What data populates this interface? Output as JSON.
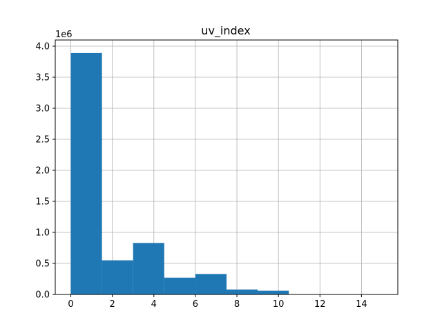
{
  "chart_data": {
    "type": "bar",
    "title": "uv_index",
    "xlabel": "",
    "ylabel": "",
    "y_offset_label": "1e6",
    "bar_color": "#1f77b4",
    "grid": true,
    "xlim": [
      -0.75,
      15.75
    ],
    "ylim": [
      0,
      4.1
    ],
    "bins": [
      {
        "start": 0.0,
        "end": 1.5,
        "value": 3.89
      },
      {
        "start": 1.5,
        "end": 3.0,
        "value": 0.55
      },
      {
        "start": 3.0,
        "end": 4.5,
        "value": 0.83
      },
      {
        "start": 4.5,
        "end": 6.0,
        "value": 0.27
      },
      {
        "start": 6.0,
        "end": 7.5,
        "value": 0.33
      },
      {
        "start": 7.5,
        "end": 9.0,
        "value": 0.08
      },
      {
        "start": 9.0,
        "end": 10.5,
        "value": 0.06
      },
      {
        "start": 10.5,
        "end": 12.0,
        "value": 0.005
      },
      {
        "start": 12.0,
        "end": 13.5,
        "value": 0.001
      },
      {
        "start": 13.5,
        "end": 15.0,
        "value": 0.0005
      }
    ],
    "x_ticks": [
      0,
      2,
      4,
      6,
      8,
      10,
      12,
      14
    ],
    "x_tick_labels": [
      "0",
      "2",
      "4",
      "6",
      "8",
      "10",
      "12",
      "14"
    ],
    "y_ticks": [
      0,
      0.5,
      1.0,
      1.5,
      2.0,
      2.5,
      3.0,
      3.5,
      4.0
    ],
    "y_tick_labels": [
      "0.0",
      "0.5",
      "1.0",
      "1.5",
      "2.0",
      "2.5",
      "3.0",
      "3.5",
      "4.0"
    ]
  }
}
